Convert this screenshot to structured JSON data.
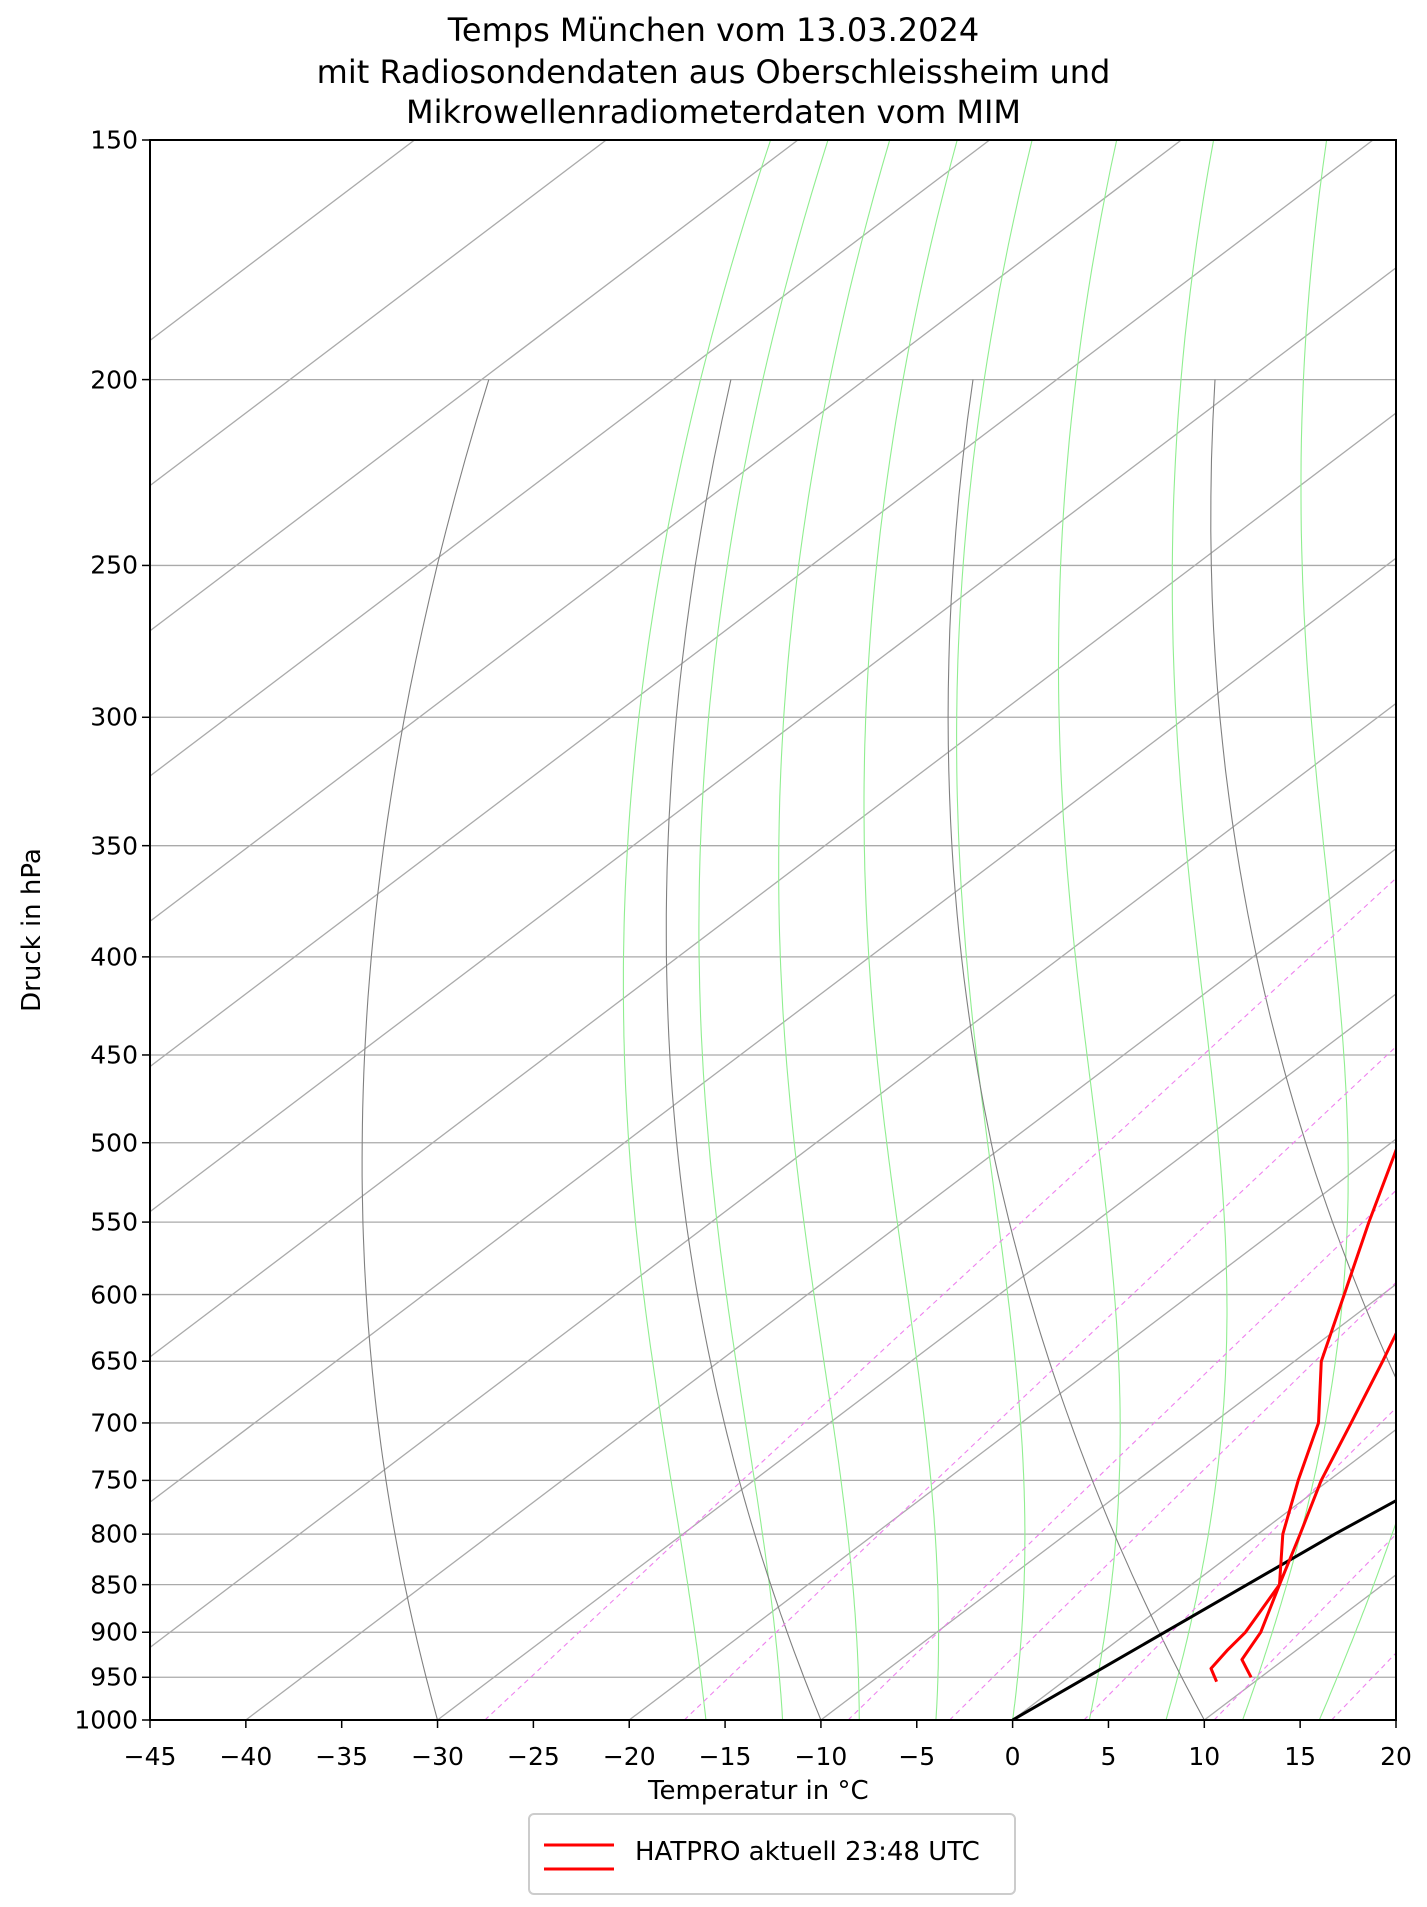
{
  "chart_data": {
    "type": "skew-t",
    "title": [
      "Temps München vom 13.03.2024",
      "mit Radiosondendaten aus Oberschleissheim und",
      "Mikrowellenradiometerdaten vom MIM"
    ],
    "xlabel": "Temperatur in  °C",
    "ylabel": "Druck in hPa",
    "xlim": [
      -45,
      20
    ],
    "ylim": [
      1000,
      150
    ],
    "y_scale": "log",
    "x_ticks": [
      "−45",
      "−40",
      "−35",
      "−30",
      "−25",
      "−20",
      "−15",
      "−10",
      "−5",
      "0",
      "5",
      "10",
      "15",
      "20"
    ],
    "x_tick_values": [
      -45,
      -40,
      -35,
      -30,
      -25,
      -20,
      -15,
      -10,
      -5,
      0,
      5,
      10,
      15,
      20
    ],
    "y_ticks": [
      150,
      200,
      250,
      300,
      350,
      400,
      450,
      500,
      550,
      600,
      650,
      700,
      750,
      800,
      850,
      900,
      950,
      1000
    ],
    "grid": true,
    "legend": {
      "position": "below",
      "entries": [
        "HATPRO aktuell 23:48 UTC"
      ]
    },
    "series": [
      {
        "name": "HATPRO aktuell 23:48 UTC",
        "color": "#ff0000",
        "kind": "temperature",
        "points": [
          [
            950,
            9.5
          ],
          [
            930,
            7.8
          ],
          [
            900,
            6.9
          ],
          [
            850,
            4.6
          ],
          [
            800,
            2.2
          ],
          [
            750,
            -0.4
          ],
          [
            700,
            -2.8
          ],
          [
            650,
            -5.4
          ],
          [
            600,
            -8.3
          ],
          [
            550,
            -11.4
          ],
          [
            500,
            -14.6
          ],
          [
            450,
            -18.6
          ],
          [
            400,
            -23.5
          ],
          [
            350,
            -29.1
          ],
          [
            300,
            -35.8
          ],
          [
            270,
            -40.1
          ],
          [
            250,
            -43.2
          ],
          [
            241,
            -44.8
          ]
        ]
      },
      {
        "name": "HATPRO aktuell 23:48 UTC",
        "color": "#ff0000",
        "kind": "dewpoint",
        "points": [
          [
            955,
            8.0
          ],
          [
            940,
            6.8
          ],
          [
            920,
            6.4
          ],
          [
            900,
            6.1
          ],
          [
            850,
            4.6
          ],
          [
            800,
            1.3
          ],
          [
            750,
            -1.6
          ],
          [
            700,
            -4.5
          ],
          [
            650,
            -8.6
          ],
          [
            600,
            -12.0
          ],
          [
            550,
            -15.7
          ],
          [
            500,
            -19.6
          ],
          [
            450,
            -23.8
          ],
          [
            400,
            -28.4
          ],
          [
            350,
            -33.8
          ],
          [
            300,
            -40.2
          ],
          [
            270,
            -44.8
          ],
          [
            250,
            -48.2
          ],
          [
            241,
            -49.4
          ]
        ]
      }
    ],
    "reference_line": {
      "color": "#000000",
      "kind": "lifted-parcel",
      "points": [
        [
          1000,
          0
        ],
        [
          800,
          4.0
        ],
        [
          600,
          10.4
        ],
        [
          500,
          16.0
        ],
        [
          400,
          23.8
        ],
        [
          365,
          27.2
        ]
      ]
    },
    "grid_colors": {
      "isobar": "#aaaaaa",
      "isotherm": "#aaaaaa",
      "dry_adiabat": "#808080",
      "moist_adiabat": "#90ee90",
      "mixing_ratio": "#ee82ee"
    }
  }
}
